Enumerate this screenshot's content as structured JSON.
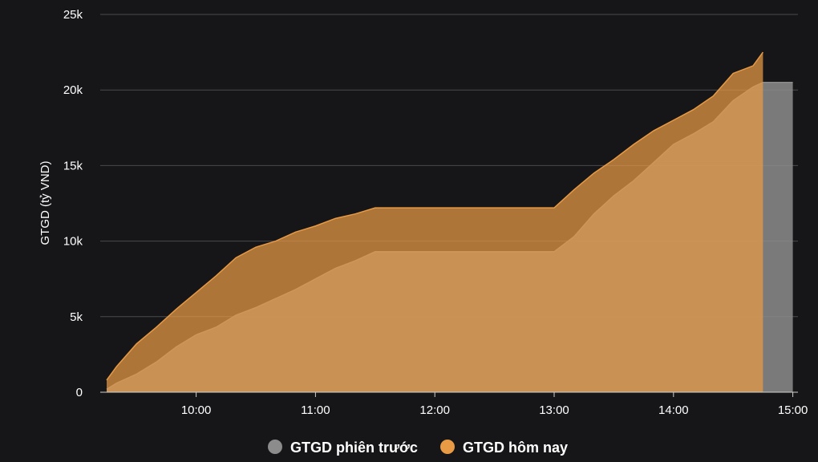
{
  "colors": {
    "background": "#161618",
    "grid": "#4a4a4e",
    "today": "#e89a45",
    "previous": "#8c8c8c"
  },
  "chart_data": {
    "type": "area",
    "title": "",
    "xlabel": "",
    "ylabel": "GTGD (tỷ VND)",
    "ylim": [
      0,
      25000
    ],
    "yticks": [
      0,
      5000,
      10000,
      15000,
      20000,
      25000
    ],
    "ytick_labels": [
      "0",
      "5k",
      "10k",
      "15k",
      "20k",
      "25k"
    ],
    "xlim": [
      "09:15",
      "15:00"
    ],
    "xticks": [
      "10:00",
      "11:00",
      "12:00",
      "13:00",
      "14:00",
      "15:00"
    ],
    "grid": true,
    "legend_position": "bottom",
    "series": [
      {
        "name": "GTGD phiên trước",
        "color": "#8c8c8c",
        "points": [
          [
            "09:15",
            200
          ],
          [
            "09:20",
            600
          ],
          [
            "09:30",
            1200
          ],
          [
            "09:40",
            2000
          ],
          [
            "09:50",
            3000
          ],
          [
            "10:00",
            3800
          ],
          [
            "10:10",
            4300
          ],
          [
            "10:20",
            5100
          ],
          [
            "10:30",
            5600
          ],
          [
            "10:40",
            6200
          ],
          [
            "10:50",
            6800
          ],
          [
            "11:00",
            7500
          ],
          [
            "11:10",
            8200
          ],
          [
            "11:20",
            8700
          ],
          [
            "11:30",
            9300
          ],
          [
            "12:00",
            9300
          ],
          [
            "13:00",
            9300
          ],
          [
            "13:10",
            10300
          ],
          [
            "13:20",
            11800
          ],
          [
            "13:30",
            13000
          ],
          [
            "13:40",
            14000
          ],
          [
            "13:50",
            15200
          ],
          [
            "14:00",
            16400
          ],
          [
            "14:10",
            17100
          ],
          [
            "14:20",
            17900
          ],
          [
            "14:30",
            19300
          ],
          [
            "14:40",
            20200
          ],
          [
            "14:45",
            20500
          ],
          [
            "15:00",
            20500
          ]
        ]
      },
      {
        "name": "GTGD hôm nay",
        "color": "#e89a45",
        "points": [
          [
            "09:15",
            800
          ],
          [
            "09:20",
            1700
          ],
          [
            "09:30",
            3200
          ],
          [
            "09:40",
            4300
          ],
          [
            "09:50",
            5500
          ],
          [
            "10:00",
            6600
          ],
          [
            "10:10",
            7700
          ],
          [
            "10:20",
            8900
          ],
          [
            "10:30",
            9600
          ],
          [
            "10:40",
            10000
          ],
          [
            "10:50",
            10600
          ],
          [
            "11:00",
            11000
          ],
          [
            "11:10",
            11500
          ],
          [
            "11:20",
            11800
          ],
          [
            "11:30",
            12200
          ],
          [
            "12:00",
            12200
          ],
          [
            "13:00",
            12200
          ],
          [
            "13:10",
            13400
          ],
          [
            "13:20",
            14500
          ],
          [
            "13:30",
            15400
          ],
          [
            "13:40",
            16400
          ],
          [
            "13:50",
            17300
          ],
          [
            "14:00",
            18000
          ],
          [
            "14:10",
            18700
          ],
          [
            "14:20",
            19600
          ],
          [
            "14:30",
            21100
          ],
          [
            "14:40",
            21600
          ],
          [
            "14:45",
            22500
          ]
        ]
      }
    ]
  }
}
